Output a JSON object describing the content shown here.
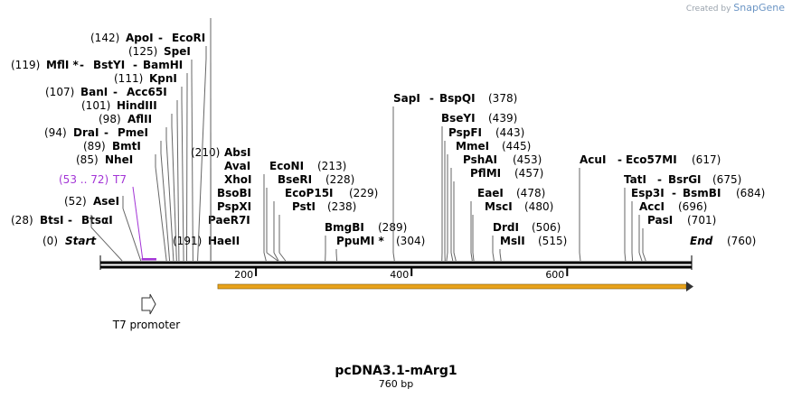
{
  "brand": {
    "created_by": "Created by",
    "product": "SnapGene"
  },
  "plasmid": {
    "name": "pcDNA3.1-mArg1",
    "length_label": "760 bp",
    "length": 760
  },
  "start_label": "(0)",
  "start_text": "Start",
  "end_label": "(760)",
  "end_text": "End",
  "ruler_ticks": [
    {
      "pos": 200,
      "label": "200"
    },
    {
      "pos": 400,
      "label": "400"
    },
    {
      "pos": 600,
      "label": "600"
    }
  ],
  "orf": {
    "start": 151,
    "end": 760,
    "color": "#e8a21a"
  },
  "primer": {
    "text": "T7",
    "range_text": "(53 .. 72)",
    "start": 53,
    "end": 72,
    "color": "#a335d6"
  },
  "promoter": {
    "label": "T7 promoter"
  },
  "left_sites": [
    {
      "num": "(142)",
      "name": "ApoI",
      "suffix": "",
      "name2": "EcoRI",
      "suffix2": "",
      "pos": 142
    },
    {
      "num": "(125)",
      "name": "SpeI",
      "suffix": "",
      "name2": "",
      "suffix2": "",
      "pos": 125
    },
    {
      "num": "(119)",
      "name": "MflI",
      "suffix": " *",
      "name2": "BstYI",
      "suffix2": "",
      "name3": "BamHI",
      "pos": 119
    },
    {
      "num": "(111)",
      "name": "KpnI",
      "suffix": "",
      "name2": "",
      "suffix2": "",
      "pos": 111
    },
    {
      "num": "(107)",
      "name": "BanI",
      "suffix": "",
      "name2": "Acc65I",
      "suffix2": "",
      "pos": 107
    },
    {
      "num": "(101)",
      "name": "HindIII",
      "suffix": "",
      "name2": "",
      "suffix2": "",
      "pos": 101
    },
    {
      "num": "(98)",
      "name": "AflII",
      "suffix": "",
      "name2": "",
      "suffix2": "",
      "pos": 98
    },
    {
      "num": "(94)",
      "name": "DraI",
      "suffix": "",
      "name2": "PmeI",
      "suffix2": "",
      "pos": 94
    },
    {
      "num": "(89)",
      "name": "BmtI",
      "suffix": "",
      "name2": "",
      "suffix2": "",
      "pos": 89
    },
    {
      "num": "(85)",
      "name": "NheI",
      "suffix": "",
      "name2": "",
      "suffix2": "",
      "pos": 85
    },
    {
      "num": "(52)",
      "name": "AseI",
      "suffix": "",
      "name2": "",
      "suffix2": "",
      "pos": 52
    },
    {
      "num": "(28)",
      "name": "BtsI",
      "suffix": "",
      "name2": "BtsαI",
      "suffix2": "",
      "pos": 28
    }
  ],
  "haeii": {
    "num": "(191)",
    "name": "HaeII",
    "pos": 191
  },
  "group_210": {
    "num": "(210)",
    "pos": 210,
    "names": [
      "AbsI",
      "AvaI",
      "XhoI",
      "BsoBI",
      "PspXI",
      "PaeR7I"
    ]
  },
  "right_sites": [
    {
      "name": "EcoNI",
      "num": "(213)",
      "pos": 213
    },
    {
      "name": "BseRI",
      "num": "(228)",
      "pos": 228
    },
    {
      "name": "EcoP15I",
      "num": "(229)",
      "pos": 229
    },
    {
      "name": "PstI",
      "num": "(238)",
      "pos": 238
    },
    {
      "name": "BmgBI",
      "num": "(289)",
      "pos": 289
    },
    {
      "name": "PpuMI",
      "suffix": " *",
      "num": "(304)",
      "pos": 304
    },
    {
      "name": "SapI",
      "name2": "BspQI",
      "num": "(378)",
      "pos": 378
    },
    {
      "name": "BseYI",
      "num": "(439)",
      "pos": 439
    },
    {
      "name": "PspFI",
      "num": "(443)",
      "pos": 443
    },
    {
      "name": "MmeI",
      "num": "(445)",
      "pos": 445
    },
    {
      "name": "PshAI",
      "num": "(453)",
      "pos": 453
    },
    {
      "name": "PflMI",
      "num": "(457)",
      "pos": 457
    },
    {
      "name": "EaeI",
      "num": "(478)",
      "pos": 478
    },
    {
      "name": "MscI",
      "num": "(480)",
      "pos": 480
    },
    {
      "name": "DrdI",
      "num": "(506)",
      "pos": 506
    },
    {
      "name": "MslI",
      "num": "(515)",
      "pos": 515
    },
    {
      "name": "AcuI",
      "name2": "Eco57MI",
      "num": "(617)",
      "pos": 617
    },
    {
      "name": "TatI",
      "name2": "BsrGI",
      "num": "(675)",
      "pos": 675
    },
    {
      "name": "Esp3I",
      "name2": "BsmBI",
      "num": "(684)",
      "pos": 684
    },
    {
      "name": "AccI",
      "num": "(696)",
      "pos": 696
    },
    {
      "name": "PasI",
      "num": "(701)",
      "pos": 701
    }
  ]
}
